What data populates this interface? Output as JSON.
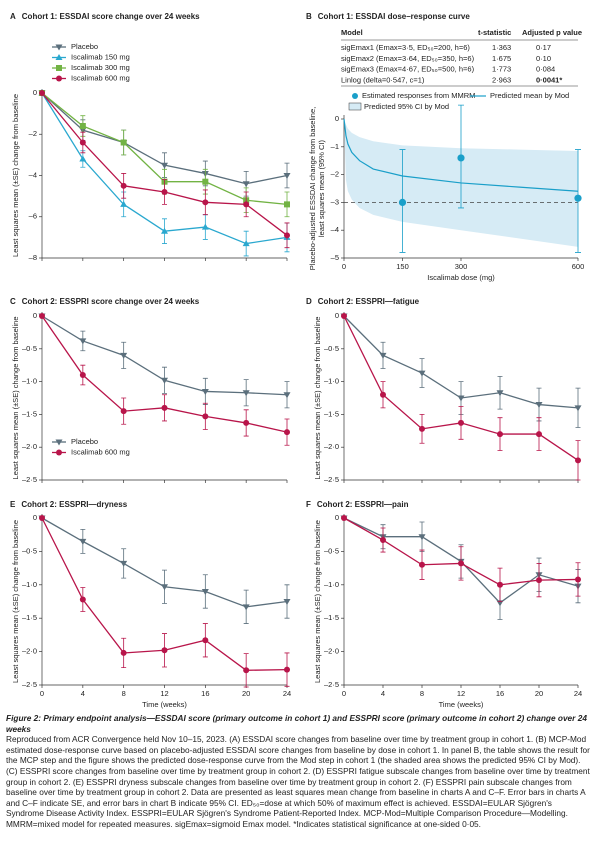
{
  "chart_data": [
    {
      "type": "line",
      "panel": "A",
      "title": "Cohort 1: ESSDAI score change over 24 weeks",
      "ylabel": [
        "Least squares mean (±SE) change from baseline"
      ],
      "x": [
        0,
        4,
        8,
        12,
        16,
        20,
        24
      ],
      "xlim": [
        0,
        24
      ],
      "ylim": [
        -8,
        0
      ],
      "yticks": [
        {
          "value": 0,
          "label": "0"
        },
        {
          "value": -2,
          "label": "–2"
        },
        {
          "value": -4,
          "label": "–4"
        },
        {
          "value": -6,
          "label": "–6"
        },
        {
          "value": -8,
          "label": "–8"
        }
      ],
      "legend": "upper-left",
      "series": [
        {
          "name": "Placebo",
          "color": "#5b6f7c",
          "marker": "triangle-down",
          "values": [
            0,
            -1.8,
            -2.4,
            -3.5,
            -3.9,
            -4.4,
            -4.0
          ],
          "errors": [
            0,
            0.5,
            0.6,
            0.6,
            0.6,
            0.6,
            0.6
          ]
        },
        {
          "name": "Iscalimab 150 mg",
          "color": "#2aa8cf",
          "marker": "triangle-up",
          "values": [
            0,
            -3.2,
            -5.4,
            -6.7,
            -6.5,
            -7.3,
            -7.0
          ],
          "errors": [
            0,
            0.4,
            0.6,
            0.6,
            0.6,
            0.6,
            0.7
          ]
        },
        {
          "name": "Iscalimab 300 mg",
          "color": "#72b344",
          "marker": "square",
          "values": [
            0,
            -1.6,
            -2.4,
            -4.3,
            -4.3,
            -5.2,
            -5.4
          ],
          "errors": [
            0,
            0.5,
            0.6,
            0.6,
            0.6,
            0.6,
            0.6
          ]
        },
        {
          "name": "Iscalimab 600 mg",
          "color": "#b8154a",
          "marker": "circle",
          "values": [
            0,
            -2.4,
            -4.5,
            -4.8,
            -5.3,
            -5.4,
            -6.9
          ],
          "errors": [
            0,
            0.5,
            0.6,
            0.6,
            0.6,
            0.6,
            0.6
          ]
        }
      ]
    },
    {
      "type": "scatter",
      "panel": "B",
      "title": "Cohort 1: ESSDAI dose–response curve",
      "table": {
        "columns": [
          "Model",
          "t-statistic",
          "Adjusted p value"
        ],
        "rows": [
          [
            "sigEmax1 (Emax=3·5, ED₅₀=200, h=6)",
            "1·363",
            "0·17"
          ],
          [
            "sigEmax2 (Emax=3·64, ED₅₀=350, h=6)",
            "1·675",
            "0·10"
          ],
          [
            "sigEmax3 (Emax=4·67, ED₅₀=500, h=6)",
            "1·773",
            "0·084"
          ],
          [
            "Linlog (delta=0·547, c=1)",
            "2·963",
            "0·0041*"
          ]
        ],
        "bold_row": 3
      },
      "ylabel": [
        "Placebo-adjusted ESSDAI change from baseline,",
        "least squares mean (95% CI)"
      ],
      "xlabel": "Iscalimab dose (mg)",
      "xlim": [
        0,
        600
      ],
      "xticks": [
        0,
        150,
        300,
        600
      ],
      "ylim": [
        -5,
        0
      ],
      "yticks": [
        {
          "value": 0,
          "label": "0"
        },
        {
          "value": -1,
          "label": "–1"
        },
        {
          "value": -2,
          "label": "–2"
        },
        {
          "value": -3,
          "label": "–3"
        },
        {
          "value": -4,
          "label": "–4"
        },
        {
          "value": -5,
          "label": "–5"
        }
      ],
      "reference_line": -3,
      "points": {
        "name": "Estimated responses from MMRM",
        "color": "#1a9fc9",
        "x": [
          150,
          300,
          600
        ],
        "values": [
          -3.0,
          -1.4,
          -2.85
        ],
        "lower": [
          -4.8,
          -3.2,
          -4.8
        ],
        "upper": [
          -1.1,
          0.5,
          -1.1
        ]
      },
      "curve": {
        "name": "Predicted mean by Mod",
        "color": "#1a9fc9",
        "x": [
          0,
          5,
          10,
          20,
          40,
          75,
          150,
          300,
          450,
          600
        ],
        "values": [
          0,
          -0.6,
          -0.9,
          -1.2,
          -1.5,
          -1.8,
          -2.05,
          -2.3,
          -2.45,
          -2.6
        ]
      },
      "band": {
        "name": "Predicted 95% CI by Mod",
        "color": "#d6ebf5",
        "upper": [
          0,
          -0.2,
          -0.35,
          -0.5,
          -0.65,
          -0.8,
          -0.95,
          -1.05,
          -1.1,
          -1.15
        ],
        "lower": [
          0,
          -2.2,
          -2.6,
          -2.9,
          -3.2,
          -3.45,
          -3.7,
          -4.0,
          -4.3,
          -4.6
        ]
      }
    },
    {
      "type": "line",
      "panel": "C",
      "title": "Cohort 2: ESSPRI score change over 24 weeks",
      "ylabel": [
        "Least squares mean (±SE) change from baseline"
      ],
      "x": [
        0,
        4,
        8,
        12,
        16,
        20,
        24
      ],
      "xlim": [
        0,
        24
      ],
      "ylim": [
        -2.5,
        0
      ],
      "yticks": [
        {
          "value": 0,
          "label": "0"
        },
        {
          "value": -0.5,
          "label": "–0·5"
        },
        {
          "value": -1,
          "label": "–1·0"
        },
        {
          "value": -1.5,
          "label": "–1·5"
        },
        {
          "value": -2,
          "label": "–2·0"
        },
        {
          "value": -2.5,
          "label": "–2·5"
        }
      ],
      "legend": "lower-left",
      "series": [
        {
          "name": "Placebo",
          "color": "#5b6f7c",
          "marker": "triangle-down",
          "values": [
            0,
            -0.38,
            -0.6,
            -0.98,
            -1.15,
            -1.17,
            -1.2
          ],
          "errors": [
            0,
            0.15,
            0.2,
            0.2,
            0.2,
            0.2,
            0.2
          ]
        },
        {
          "name": "Iscalimab 600 mg",
          "color": "#b8154a",
          "marker": "circle",
          "values": [
            0,
            -0.9,
            -1.45,
            -1.4,
            -1.53,
            -1.63,
            -1.77
          ],
          "errors": [
            0,
            0.15,
            0.2,
            0.2,
            0.2,
            0.2,
            0.2
          ]
        }
      ]
    },
    {
      "type": "line",
      "panel": "D",
      "title": "Cohort 2: ESSPRI—fatigue",
      "ylabel": [
        "Least squares mean (±SE) change from baseline"
      ],
      "x": [
        0,
        4,
        8,
        12,
        16,
        20,
        24
      ],
      "xlim": [
        0,
        24
      ],
      "ylim": [
        -2.5,
        0
      ],
      "yticks": [
        {
          "value": 0,
          "label": "0"
        },
        {
          "value": -0.5,
          "label": "–0·5"
        },
        {
          "value": -1,
          "label": "–1·0"
        },
        {
          "value": -1.5,
          "label": "–1·5"
        },
        {
          "value": -2,
          "label": "–2·0"
        },
        {
          "value": -2.5,
          "label": "–2·5"
        }
      ],
      "series": [
        {
          "name": "Placebo",
          "color": "#5b6f7c",
          "marker": "triangle-down",
          "values": [
            0,
            -0.6,
            -0.87,
            -1.25,
            -1.17,
            -1.35,
            -1.4
          ],
          "errors": [
            0,
            0.2,
            0.22,
            0.25,
            0.25,
            0.25,
            0.3
          ]
        },
        {
          "name": "Iscalimab 600 mg",
          "color": "#b8154a",
          "marker": "circle",
          "values": [
            0,
            -1.2,
            -1.72,
            -1.63,
            -1.8,
            -1.8,
            -2.2
          ],
          "errors": [
            0,
            0.2,
            0.22,
            0.25,
            0.25,
            0.25,
            0.3
          ]
        }
      ]
    },
    {
      "type": "line",
      "panel": "E",
      "title": "Cohort 2: ESSPRI—dryness",
      "ylabel": [
        "Least squares mean (±SE) change from baseline"
      ],
      "xlabel": "Time (weeks)",
      "x": [
        0,
        4,
        8,
        12,
        16,
        20,
        24
      ],
      "xlim": [
        0,
        24
      ],
      "xticks": [
        0,
        4,
        8,
        12,
        16,
        20,
        24
      ],
      "ylim": [
        -2.5,
        0
      ],
      "yticks": [
        {
          "value": 0,
          "label": "0"
        },
        {
          "value": -0.5,
          "label": "–0·5"
        },
        {
          "value": -1,
          "label": "–1·0"
        },
        {
          "value": -1.5,
          "label": "–1·5"
        },
        {
          "value": -2,
          "label": "–2·0"
        },
        {
          "value": -2.5,
          "label": "–2·5"
        }
      ],
      "series": [
        {
          "name": "Placebo",
          "color": "#5b6f7c",
          "marker": "triangle-down",
          "values": [
            0,
            -0.35,
            -0.68,
            -1.03,
            -1.1,
            -1.33,
            -1.25
          ],
          "errors": [
            0,
            0.18,
            0.22,
            0.25,
            0.25,
            0.25,
            0.25
          ]
        },
        {
          "name": "Iscalimab 600 mg",
          "color": "#b8154a",
          "marker": "circle",
          "values": [
            0,
            -1.22,
            -2.02,
            -1.98,
            -1.83,
            -2.28,
            -2.27
          ],
          "errors": [
            0,
            0.18,
            0.22,
            0.25,
            0.25,
            0.25,
            0.25
          ]
        }
      ]
    },
    {
      "type": "line",
      "panel": "F",
      "title": "Cohort 2: ESSPRI—pain",
      "ylabel": [
        "Least squares mean (±SE) change from baseline"
      ],
      "xlabel": "Time (weeks)",
      "x": [
        0,
        4,
        8,
        12,
        16,
        20,
        24
      ],
      "xlim": [
        0,
        24
      ],
      "xticks": [
        0,
        4,
        8,
        12,
        16,
        20,
        24
      ],
      "ylim": [
        -2.5,
        0
      ],
      "yticks": [
        {
          "value": 0,
          "label": "0"
        },
        {
          "value": -0.5,
          "label": "–0·5"
        },
        {
          "value": -1,
          "label": "–1·0"
        },
        {
          "value": -1.5,
          "label": "–1·5"
        },
        {
          "value": -2,
          "label": "–2·0"
        },
        {
          "value": -2.5,
          "label": "–2·5"
        }
      ],
      "series": [
        {
          "name": "Placebo",
          "color": "#5b6f7c",
          "marker": "triangle-down",
          "values": [
            0,
            -0.28,
            -0.28,
            -0.65,
            -1.27,
            -0.85,
            -1.02
          ],
          "errors": [
            0,
            0.18,
            0.22,
            0.25,
            0.25,
            0.25,
            0.25
          ]
        },
        {
          "name": "Iscalimab 600 mg",
          "color": "#b8154a",
          "marker": "circle",
          "values": [
            0,
            -0.33,
            -0.7,
            -0.68,
            -1.0,
            -0.93,
            -0.92
          ],
          "errors": [
            0,
            0.18,
            0.22,
            0.25,
            0.25,
            0.25,
            0.25
          ]
        }
      ]
    }
  ],
  "caption": {
    "title": "Figure 2: Primary endpoint analysis—ESSDAI score (primary outcome in cohort 1) and ESSPRI score (primary outcome in cohort 2) change over 24 weeks",
    "text": "Reproduced from ACR Convergence held Nov 10–15, 2023. (A) ESSDAI score changes from baseline over time by treatment group in cohort 1. (B) MCP-Mod estimated dose-response curve based on placebo-adjusted ESSDAI score changes from baseline by dose in cohort 1. In panel B, the table shows the result for the MCP step and the figure shows the predicted dose-response curve from the Mod step in cohort 1 (the shaded area shows the predicted 95% CI by Mod). (C) ESSPRI score changes from baseline over time by treatment group in cohort 2. (D) ESSPRI fatigue subscale changes from baseline over time by treatment group in cohort 2. (E) ESSPRI dryness subscale changes from baseline over time by treatment group in cohort 2. (F) ESSPRI pain subscale changes from baseline over time by treatment group in cohort 2. Data are presented as least squares mean change from baseline in charts A and C–F. Error bars in charts A and C–F indicate SE, and error bars in chart B indicate 95% CI. ED₅₀=dose at which 50% of maximum effect is achieved. ESSDAI=EULAR Sjögren's Syndrome Disease Activity Index. ESSPRI=EULAR Sjögren's Syndrome Patient-Reported Index. MCP-Mod=Multiple Comparison Procedure—Modelling. MMRM=mixed model for repeated measures. sigEmax=sigmoid Emax model. *Indicates statistical significance at one-sided 0·05."
  }
}
